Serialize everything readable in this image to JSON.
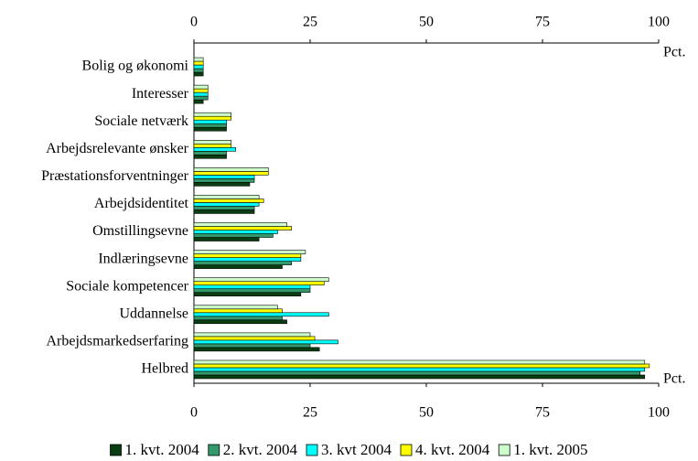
{
  "chart_data": {
    "type": "hbar",
    "x_label": "Pct.",
    "categories": [
      "Bolig og økonomi",
      "Interesser",
      "Sociale netværk",
      "Arbejdsrelevante ønsker",
      "Præstationsforventninger",
      "Arbejdsidentitet",
      "Omstillingsevne",
      "Indlæringsevne",
      "Sociale kompetencer",
      "Uddannelse",
      "Arbejdsmarkedserfaring",
      "Helbred"
    ],
    "series": [
      {
        "name": "1. kvt. 2004",
        "color": "#0b3d12",
        "values": [
          2,
          2,
          7,
          7,
          12,
          13,
          14,
          19,
          23,
          20,
          27,
          97
        ]
      },
      {
        "name": "2. kvt. 2004",
        "color": "#33996a",
        "values": [
          2,
          3,
          7,
          7,
          13,
          13,
          17,
          21,
          25,
          19,
          25,
          96
        ]
      },
      {
        "name": "3. kvt 2004",
        "color": "#00ffff",
        "values": [
          2,
          3,
          7,
          9,
          13,
          14,
          18,
          23,
          25,
          29,
          31,
          97
        ]
      },
      {
        "name": "4. kvt. 2004",
        "color": "#ffff00",
        "values": [
          2,
          3,
          8,
          8,
          16,
          15,
          21,
          23,
          28,
          19,
          26,
          98
        ]
      },
      {
        "name": "1. kvt. 2005",
        "color": "#ccffcc",
        "values": [
          2,
          3,
          8,
          8,
          16,
          14,
          20,
          24,
          29,
          18,
          25,
          97
        ]
      }
    ],
    "xlim": [
      0,
      100
    ],
    "xticks": [
      0,
      25,
      50,
      75,
      100
    ]
  }
}
